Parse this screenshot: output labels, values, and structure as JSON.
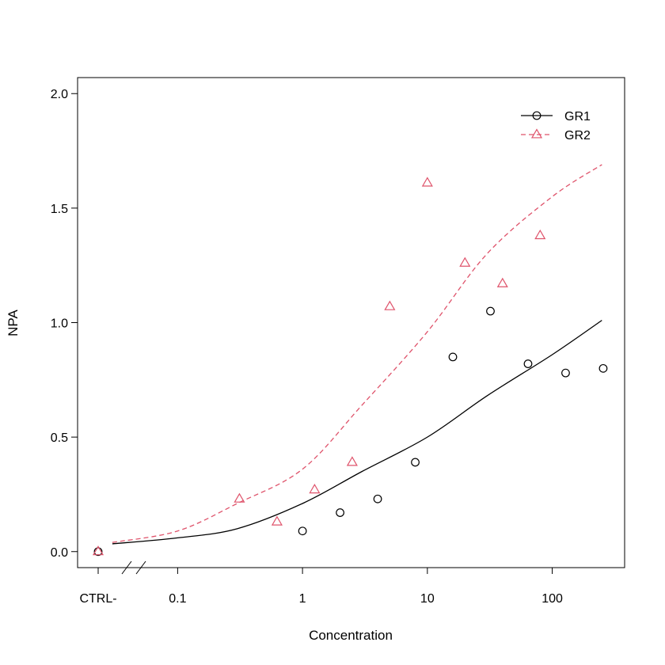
{
  "chart_data": {
    "type": "scatter",
    "xlabel": "Concentration",
    "ylabel": "NPA",
    "x_scale": "log10",
    "xlim": [
      0.0158,
      380
    ],
    "ylim": [
      -0.07,
      2.07
    ],
    "x_ticks": [
      {
        "label": "0.1",
        "value": 0.1
      },
      {
        "label": "1",
        "value": 1
      },
      {
        "label": "10",
        "value": 10
      },
      {
        "label": "100",
        "value": 100
      }
    ],
    "x_control_label": "CTRL-",
    "y_ticks": [
      {
        "label": "0.0",
        "value": 0.0
      },
      {
        "label": "0.5",
        "value": 0.5
      },
      {
        "label": "1.0",
        "value": 1.0
      },
      {
        "label": "1.5",
        "value": 1.5
      },
      {
        "label": "2.0",
        "value": 2.0
      }
    ],
    "axis_break": true,
    "grid": false,
    "legend_position": "top-right",
    "series": [
      {
        "name": "GR1",
        "color": "#000000",
        "marker": "circle",
        "line_style": "solid",
        "control_value": 0.0,
        "points": [
          {
            "x": 1,
            "y": 0.09
          },
          {
            "x": 2,
            "y": 0.17
          },
          {
            "x": 4,
            "y": 0.23
          },
          {
            "x": 8,
            "y": 0.39
          },
          {
            "x": 16,
            "y": 0.85
          },
          {
            "x": 32,
            "y": 1.05
          },
          {
            "x": 64,
            "y": 0.82
          },
          {
            "x": 128,
            "y": 0.78
          },
          {
            "x": 256,
            "y": 0.8
          }
        ],
        "fit_curve": [
          {
            "x": 0.03,
            "y": 0.034
          },
          {
            "x": 0.1,
            "y": 0.06
          },
          {
            "x": 0.3,
            "y": 0.1
          },
          {
            "x": 1,
            "y": 0.21
          },
          {
            "x": 3,
            "y": 0.35
          },
          {
            "x": 10,
            "y": 0.5
          },
          {
            "x": 30,
            "y": 0.68
          },
          {
            "x": 100,
            "y": 0.86
          },
          {
            "x": 250,
            "y": 1.01
          }
        ]
      },
      {
        "name": "GR2",
        "color": "#DF536B",
        "marker": "triangle",
        "line_style": "dashed",
        "control_value": 0.0,
        "points": [
          {
            "x": 0.3125,
            "y": 0.23
          },
          {
            "x": 0.625,
            "y": 0.13
          },
          {
            "x": 1.25,
            "y": 0.27
          },
          {
            "x": 2.5,
            "y": 0.39
          },
          {
            "x": 5,
            "y": 1.07
          },
          {
            "x": 10,
            "y": 1.61
          },
          {
            "x": 20,
            "y": 1.26
          },
          {
            "x": 40,
            "y": 1.17
          },
          {
            "x": 80,
            "y": 1.38
          }
        ],
        "fit_curve": [
          {
            "x": 0.03,
            "y": 0.04
          },
          {
            "x": 0.1,
            "y": 0.09
          },
          {
            "x": 0.3,
            "y": 0.21
          },
          {
            "x": 1,
            "y": 0.36
          },
          {
            "x": 3,
            "y": 0.64
          },
          {
            "x": 10,
            "y": 0.96
          },
          {
            "x": 30,
            "y": 1.3
          },
          {
            "x": 100,
            "y": 1.55
          },
          {
            "x": 250,
            "y": 1.69
          }
        ]
      }
    ]
  }
}
